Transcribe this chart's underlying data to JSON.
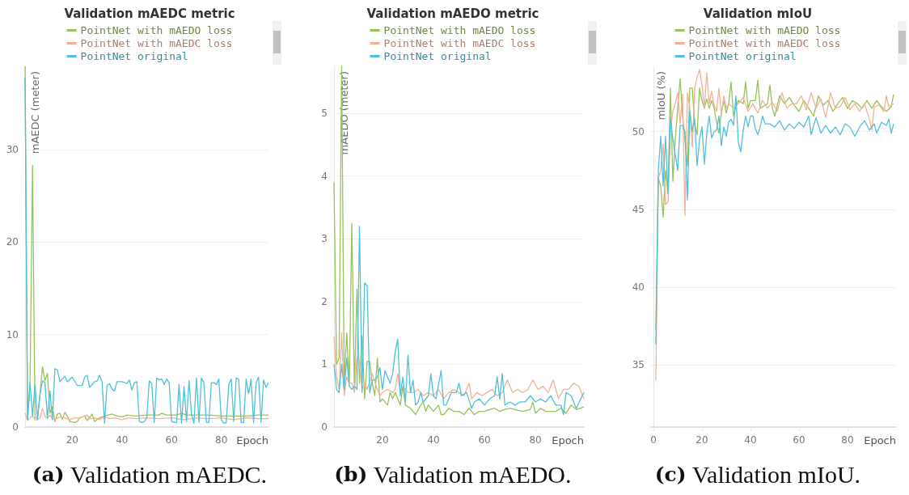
{
  "chart_data": [
    {
      "type": "line",
      "title": "Validation mAEDC metric",
      "ylabel": "mAEDC (meter)",
      "xlabel": "Epoch",
      "annotations": [
        "(a) Validation mAEDC."
      ],
      "xlim": [
        1,
        99
      ],
      "xticks": [
        20,
        40,
        60,
        80
      ],
      "ylim": [
        0,
        39
      ],
      "yticks": [
        0,
        10,
        20,
        30
      ],
      "grid": "y",
      "legend": "top",
      "marker": "none",
      "line_style": "solid",
      "series": [
        {
          "name": "PointNet with mAEDO loss",
          "color": "#98c35a",
          "x": [
            1,
            2,
            3,
            4,
            5,
            6,
            7,
            8,
            9,
            10,
            11,
            12,
            13,
            14,
            15,
            16,
            17,
            18,
            19,
            21,
            22,
            23,
            25,
            26,
            28,
            29,
            31,
            33,
            36,
            38,
            40,
            42,
            45,
            50,
            55,
            56,
            58,
            62,
            64,
            66,
            70,
            75,
            80,
            85,
            90,
            95,
            99
          ],
          "values": [
            39,
            0.8,
            4.5,
            28.3,
            1,
            1,
            3.5,
            6.5,
            5,
            5.8,
            1.5,
            2.2,
            0.6,
            1.4,
            1.5,
            0.8,
            1.6,
            1.2,
            0.6,
            0.5,
            0.6,
            1,
            1.2,
            0.7,
            1.4,
            0.6,
            1,
            1.2,
            1.4,
            1.2,
            1.1,
            1.3,
            1.2,
            1.3,
            1.3,
            1.5,
            1.3,
            1.3,
            1.5,
            1.3,
            1.3,
            1.3,
            1.2,
            1.2,
            1.2,
            1.3,
            1.3
          ]
        },
        {
          "name": "PointNet with mAEDC loss",
          "color": "#f4b196",
          "x": [
            1,
            2,
            3,
            4,
            5,
            6,
            7,
            8,
            9,
            10,
            11,
            12,
            13,
            15,
            17,
            19,
            21,
            23,
            25,
            26,
            27,
            29,
            31,
            33,
            35,
            37,
            40,
            43,
            46,
            50,
            55,
            60,
            65,
            70,
            75,
            80,
            85,
            90,
            95,
            99
          ],
          "values": [
            1.5,
            0.7,
            1,
            1.2,
            0.8,
            0.8,
            1,
            2,
            1.2,
            0.9,
            1.3,
            0.9,
            0.8,
            1.1,
            1,
            0.8,
            1,
            1,
            1.2,
            1.3,
            0.9,
            1,
            0.8,
            1.1,
            0.9,
            1,
            0.8,
            1,
            0.9,
            1,
            0.9,
            1,
            0.8,
            1,
            0.9,
            1,
            0.8,
            1,
            0.9,
            0.9
          ]
        },
        {
          "name": "PointNet original",
          "color": "#4fc1d9",
          "x": [
            1,
            2,
            3,
            4,
            5,
            6,
            7,
            8,
            9,
            10,
            11,
            12,
            13,
            14,
            15,
            17,
            18,
            20,
            22,
            24,
            25,
            26,
            27,
            29,
            30,
            31,
            32,
            33,
            34,
            35,
            36,
            37,
            38,
            40,
            42,
            43,
            44,
            45,
            46,
            47,
            48,
            49,
            50,
            51,
            52,
            53,
            54,
            55,
            56,
            57,
            58,
            59,
            60,
            61,
            62,
            63,
            64,
            65,
            66,
            67,
            68,
            69,
            70,
            71,
            72,
            73,
            74,
            75,
            76,
            77,
            78,
            79,
            80,
            81,
            82,
            83,
            84,
            85,
            86,
            87,
            88,
            89,
            90,
            91,
            92,
            93,
            94,
            95,
            96,
            97,
            98,
            99
          ],
          "values": [
            37.7,
            0.8,
            4.8,
            1.2,
            4.6,
            0.8,
            3.5,
            5,
            4.8,
            1,
            3.9,
            0.8,
            6.3,
            6.2,
            4.9,
            5.5,
            4.9,
            5.4,
            4.5,
            4.5,
            5.4,
            5.6,
            4.3,
            4.9,
            5,
            5.6,
            4.9,
            0.4,
            4.5,
            4.7,
            4.1,
            3.9,
            4.9,
            4.9,
            4.7,
            5.1,
            4,
            4.8,
            4.9,
            0.6,
            0.5,
            0.6,
            1,
            5,
            4.7,
            0.5,
            5.3,
            5.1,
            5.2,
            4.6,
            5.2,
            4.8,
            0.6,
            0.5,
            0.5,
            4.6,
            0.4,
            4.4,
            0.6,
            5,
            1.4,
            0.4,
            5.3,
            0.5,
            5.3,
            4.8,
            0.5,
            0.5,
            4.8,
            4.8,
            4.6,
            5.2,
            0.8,
            0.4,
            0.5,
            4.6,
            5.2,
            0.6,
            5.3,
            5.2,
            0.5,
            0.5,
            5.2,
            3.6,
            5.2,
            0.5,
            4.8,
            5.4,
            0.5,
            5.1,
            4.3,
            4.8
          ]
        }
      ]
    },
    {
      "type": "line",
      "title": "Validation mAEDO metric",
      "ylabel": "mAEDO (meter)",
      "xlabel": "Epoch",
      "annotations": [
        "(b) Validation mAEDO."
      ],
      "xlim": [
        1,
        99
      ],
      "xticks": [
        20,
        40,
        60,
        80
      ],
      "ylim": [
        0,
        5.75
      ],
      "yticks": [
        0,
        1,
        2,
        3,
        4,
        5
      ],
      "grid": "y",
      "legend": "top",
      "marker": "none",
      "line_style": "solid",
      "series": [
        {
          "name": "PointNet with mAEDO loss",
          "color": "#98c35a",
          "x": [
            1,
            2,
            3,
            4,
            5,
            6,
            7,
            8,
            9,
            10,
            11,
            12,
            13,
            14,
            15,
            16,
            17,
            18,
            19,
            20,
            22,
            23,
            24,
            25,
            27,
            28,
            29,
            31,
            33,
            35,
            36,
            37,
            38,
            40,
            42,
            43,
            44,
            46,
            48,
            50,
            52,
            54,
            56,
            58,
            60,
            62,
            64,
            66,
            68,
            70,
            72,
            75,
            78,
            79,
            80,
            82,
            84,
            86,
            88,
            90,
            92,
            94,
            96,
            99
          ],
          "values": [
            3.9,
            1,
            1.1,
            5.75,
            0.7,
            1.5,
            0.7,
            3.25,
            0.6,
            2.2,
            0.7,
            1.45,
            0.45,
            1.05,
            1.05,
            0.7,
            0.5,
            1.1,
            0.4,
            0.45,
            0.35,
            0.55,
            0.45,
            0.55,
            0.35,
            0.65,
            0.35,
            0.3,
            0.2,
            0.35,
            0.4,
            0.25,
            0.35,
            0.25,
            0.35,
            0.2,
            0.2,
            0.3,
            0.25,
            0.25,
            0.2,
            0.3,
            0.2,
            0.25,
            0.25,
            0.28,
            0.3,
            0.25,
            0.28,
            0.3,
            0.28,
            0.25,
            0.28,
            0.4,
            0.22,
            0.3,
            0.25,
            0.25,
            0.25,
            0.3,
            0.22,
            0.35,
            0.28,
            0.32
          ]
        },
        {
          "name": "PointNet with mAEDC loss",
          "color": "#f4b196",
          "x": [
            1,
            2,
            3,
            4,
            5,
            6,
            7,
            8,
            9,
            10,
            11,
            12,
            13,
            14,
            16,
            18,
            19,
            20,
            22,
            24,
            25,
            26,
            27,
            28,
            30,
            32,
            34,
            36,
            38,
            40,
            42,
            44,
            46,
            48,
            50,
            52,
            54,
            55,
            57,
            59,
            61,
            63,
            65,
            67,
            69,
            71,
            73,
            75,
            77,
            79,
            81,
            83,
            85,
            87,
            89,
            91,
            93,
            95,
            97,
            99
          ],
          "values": [
            1.45,
            0.8,
            0.6,
            1.5,
            0.5,
            0.8,
            0.7,
            0.7,
            0.55,
            1.1,
            1.05,
            0.6,
            0.7,
            0.6,
            0.85,
            0.6,
            0.5,
            0.55,
            0.6,
            0.55,
            0.6,
            0.85,
            0.55,
            0.65,
            0.55,
            0.55,
            0.6,
            0.5,
            0.55,
            0.5,
            0.6,
            0.45,
            0.55,
            0.6,
            0.55,
            0.5,
            0.7,
            0.45,
            0.55,
            0.5,
            0.55,
            0.6,
            0.5,
            0.55,
            0.75,
            0.55,
            0.6,
            0.55,
            0.6,
            0.75,
            0.6,
            0.65,
            0.55,
            0.75,
            0.45,
            0.6,
            0.6,
            0.7,
            0.65,
            0.45
          ]
        },
        {
          "name": "PointNet original",
          "color": "#4fc1d9",
          "x": [
            1,
            2,
            3,
            4,
            5,
            6,
            7,
            8,
            9,
            10,
            11,
            12,
            13,
            14,
            15,
            16,
            17,
            18,
            19,
            20,
            21,
            23,
            24,
            25,
            26,
            27,
            28,
            29,
            30,
            31,
            32,
            33,
            34,
            35,
            36,
            38,
            39,
            40,
            41,
            43,
            44,
            45,
            47,
            49,
            50,
            51,
            53,
            55,
            56,
            58,
            60,
            62,
            64,
            65,
            66,
            67,
            68,
            70,
            72,
            74,
            76,
            78,
            80,
            82,
            84,
            86,
            88,
            90,
            91,
            92,
            94,
            96,
            99
          ],
          "values": [
            1,
            0.6,
            0.55,
            1,
            0.6,
            1.1,
            0.65,
            0.6,
            0.65,
            0.6,
            3.2,
            0.55,
            2.3,
            2.25,
            0.55,
            0.75,
            0.75,
            0.8,
            0.95,
            0.6,
            0.9,
            0.7,
            0.85,
            1.2,
            1.4,
            0.5,
            0.8,
            0.4,
            1.15,
            0.55,
            0.75,
            0.35,
            0.4,
            0.55,
            0.4,
            0.5,
            0.85,
            0.5,
            0.45,
            0.9,
            0.35,
            0.35,
            0.55,
            0.55,
            0.7,
            0.5,
            0.55,
            0.3,
            0.4,
            0.45,
            0.35,
            0.45,
            0.5,
            0.8,
            0.45,
            0.85,
            0.35,
            0.4,
            0.35,
            0.4,
            0.4,
            0.5,
            0.4,
            0.45,
            0.4,
            0.5,
            0.35,
            0.35,
            0.2,
            0.55,
            0.5,
            0.3,
            0.55
          ]
        }
      ]
    },
    {
      "type": "line",
      "title": "Validation mIoU",
      "ylabel": "mIoU (%)",
      "xlabel": "Epoch",
      "annotations": [
        "(c) Validation mIoU."
      ],
      "xlim": [
        -1,
        100
      ],
      "xticks": [
        0,
        20,
        40,
        60,
        80
      ],
      "ylim": [
        31,
        54.2
      ],
      "yticks": [
        35,
        40,
        45,
        50
      ],
      "grid": "y",
      "legend": "top",
      "marker": "none",
      "line_style": "solid",
      "series": [
        {
          "name": "PointNet with mAEDO loss",
          "color": "#98c35a",
          "x": [
            1,
            2,
            3,
            4,
            5,
            6,
            7,
            8,
            9,
            10,
            11,
            12,
            13,
            14,
            15,
            16,
            17,
            18,
            19,
            20,
            21,
            22,
            23,
            24,
            25,
            26,
            27,
            28,
            29,
            30,
            31,
            32,
            33,
            34,
            35,
            37,
            38,
            39,
            40,
            42,
            43,
            44,
            45,
            47,
            48,
            49,
            50,
            52,
            54,
            56,
            58,
            60,
            62,
            64,
            66,
            68,
            70,
            72,
            74,
            76,
            78,
            80,
            82,
            84,
            86,
            88,
            90,
            92,
            94,
            96,
            98,
            99
          ],
          "values": [
            37.3,
            47,
            46.5,
            44.5,
            47.5,
            46,
            52.8,
            46.8,
            49.5,
            51.5,
            53.4,
            51,
            49.5,
            47.8,
            52.8,
            52.8,
            50.5,
            49.8,
            52.8,
            52,
            51.5,
            52.1,
            51.5,
            52,
            51.5,
            50.6,
            49.9,
            51.3,
            52,
            51.2,
            51.8,
            53.2,
            51,
            51.6,
            52,
            51.8,
            53.2,
            51.5,
            52,
            52,
            53.3,
            51.5,
            51.6,
            51.8,
            53,
            51.5,
            51,
            52.3,
            51.8,
            52.2,
            51.7,
            51.3,
            52,
            51.5,
            51,
            52.3,
            51.7,
            52,
            51.3,
            51.8,
            52.2,
            51.5,
            52,
            51.8,
            51.5,
            52,
            51.5,
            52,
            51.6,
            51.3,
            51.6,
            52.4
          ]
        },
        {
          "name": "PointNet with mAEDC loss",
          "color": "#f4b196",
          "x": [
            1,
            2,
            3,
            4,
            5,
            6,
            7,
            8,
            9,
            10,
            11,
            12,
            13,
            14,
            15,
            16,
            17,
            18,
            19,
            20,
            21,
            22,
            23,
            24,
            25,
            26,
            27,
            28,
            29,
            30,
            31,
            33,
            35,
            37,
            39,
            41,
            43,
            45,
            47,
            49,
            51,
            53,
            55,
            57,
            59,
            61,
            63,
            65,
            67,
            69,
            71,
            73,
            75,
            77,
            79,
            81,
            83,
            85,
            87,
            89,
            90,
            91,
            93,
            95,
            96,
            97,
            99
          ],
          "values": [
            34,
            47,
            47.5,
            49.2,
            45.3,
            45.5,
            50,
            51.3,
            51.8,
            52.5,
            50.5,
            52.4,
            44.6,
            52.5,
            51.5,
            49,
            52.8,
            53.5,
            54,
            53,
            51.5,
            53.8,
            51.8,
            52.6,
            51.7,
            51.3,
            52.8,
            51,
            52.3,
            51.5,
            51.8,
            51.5,
            51.8,
            52.2,
            51.3,
            51.8,
            51.2,
            52,
            51.5,
            51.9,
            51.3,
            52.5,
            51.5,
            51.8,
            51.8,
            52.3,
            51.4,
            52.5,
            51.5,
            52.1,
            50.9,
            52.5,
            51.5,
            51.6,
            52.2,
            51.4,
            51.8,
            51.3,
            51.8,
            50.8,
            50.1,
            51.6,
            51.7,
            51.3,
            52.3,
            51.6,
            51.8
          ]
        },
        {
          "name": "PointNet original",
          "color": "#4fc1d9",
          "x": [
            1,
            2,
            3,
            4,
            5,
            6,
            7,
            8,
            9,
            10,
            11,
            12,
            13,
            14,
            15,
            16,
            17,
            18,
            19,
            20,
            21,
            22,
            23,
            24,
            25,
            26,
            27,
            28,
            29,
            30,
            31,
            32,
            33,
            34,
            35,
            36,
            37,
            38,
            39,
            40,
            41,
            42,
            43,
            44,
            45,
            46,
            48,
            50,
            52,
            54,
            56,
            58,
            60,
            62,
            64,
            65,
            67,
            69,
            71,
            73,
            75,
            77,
            79,
            81,
            83,
            85,
            87,
            89,
            91,
            92,
            94,
            96,
            97,
            98,
            99
          ],
          "values": [
            36.3,
            47.5,
            49.7,
            46.5,
            49.7,
            46,
            50.9,
            49.5,
            48.5,
            47.5,
            50.4,
            50.4,
            50,
            45.6,
            51.3,
            50,
            50.8,
            47.8,
            49.5,
            50.3,
            47.9,
            49.9,
            51,
            49.6,
            50,
            50.1,
            51,
            49.1,
            50.3,
            49.7,
            50.6,
            50.8,
            50.4,
            52.3,
            49.3,
            48.7,
            50.1,
            51,
            50.3,
            51,
            51,
            50.2,
            49.8,
            50.3,
            51,
            50.5,
            50.5,
            50.3,
            50.7,
            50.1,
            50.5,
            50.2,
            50.6,
            50.3,
            51,
            49.8,
            50.9,
            49.9,
            50.4,
            49.9,
            50.3,
            49.8,
            50.5,
            50.3,
            49.7,
            50.3,
            50.7,
            50.1,
            50.5,
            49.9,
            50.6,
            50.4,
            50.8,
            49.9,
            50.5
          ]
        }
      ]
    }
  ]
}
